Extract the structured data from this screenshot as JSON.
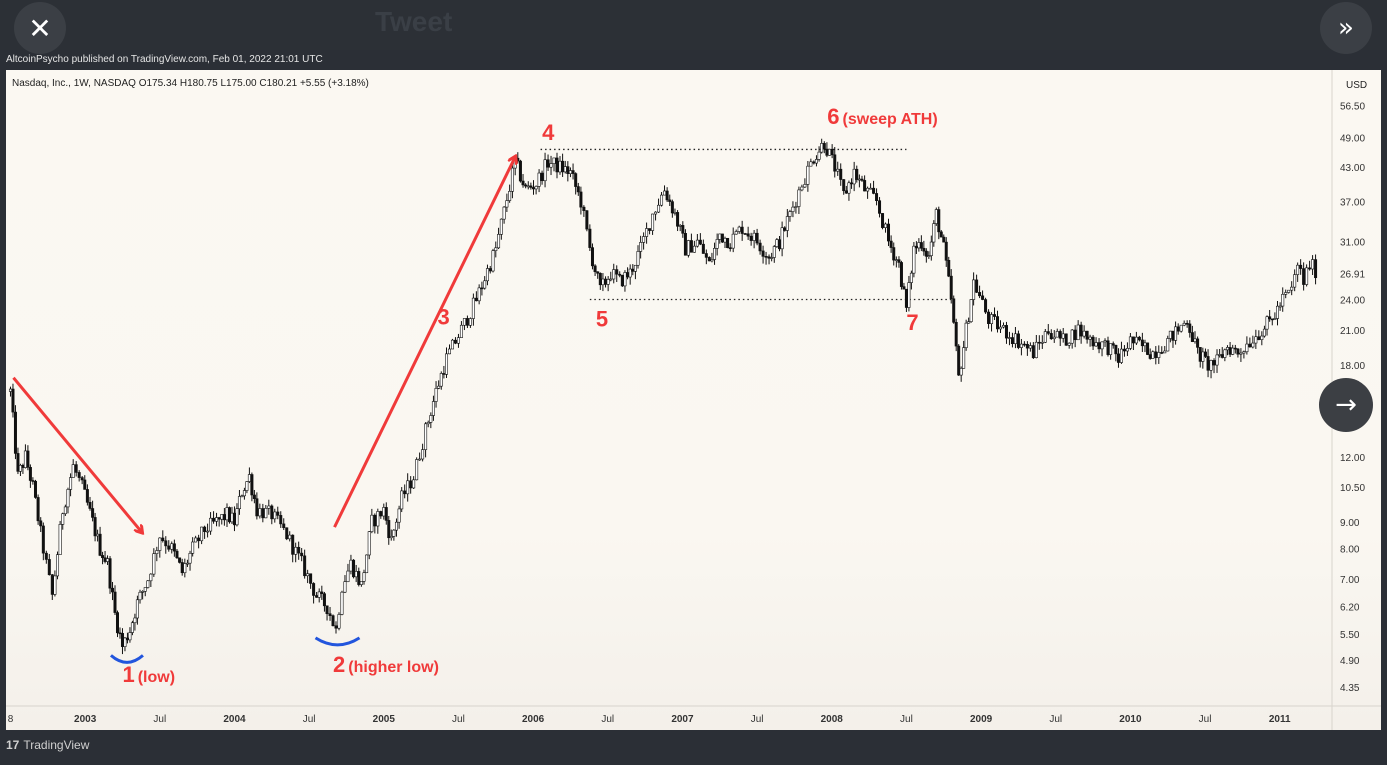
{
  "topbar": {
    "ghost_title": "Tweet"
  },
  "controls": {
    "close_glyph": "✕",
    "expand_glyph": "»",
    "next_glyph": "→"
  },
  "header": {
    "publisher": "AltcoinPsycho published on TradingView.com, Feb 01, 2022 21:01 UTC",
    "symbol_info": "Nasdaq, Inc., 1W, NASDAQ  O175.34  H180.75  L175.00  C180.21  +5.55 (+3.18%)",
    "currency": "USD"
  },
  "footer": {
    "logo_mark": "17",
    "brand": "TradingView"
  },
  "colors": {
    "annotation_red": "#f03a3a",
    "annotation_blue": "#2255dd",
    "candle": "#111111"
  },
  "chart_data": {
    "type": "line",
    "title": "",
    "y_scale": "log",
    "ylim": [
      4.0,
      66.0
    ],
    "y_ticks": [
      "56.50",
      "49.00",
      "43.00",
      "37.00",
      "31.00",
      "26.91",
      "24.00",
      "21.00",
      "18.00",
      "12.00",
      "10.50",
      "9.00",
      "8.00",
      "7.00",
      "6.20",
      "5.50",
      "4.90",
      "4.35"
    ],
    "y_tick_values": [
      56.5,
      49,
      43,
      37,
      31,
      26.91,
      24,
      21,
      18,
      12,
      10.5,
      9,
      8,
      7,
      6.2,
      5.5,
      4.9,
      4.35
    ],
    "x_ticks": [
      "8",
      "2003",
      "Jul",
      "2004",
      "Jul",
      "2005",
      "Jul",
      "2006",
      "Jul",
      "2007",
      "Jul",
      "2008",
      "Jul",
      "2009",
      "Jul",
      "2010",
      "Jul",
      "2011"
    ],
    "x_tick_dates": [
      2002.5,
      2003.0,
      2003.5,
      2004.0,
      2004.5,
      2005.0,
      2005.5,
      2006.0,
      2006.5,
      2007.0,
      2007.5,
      2008.0,
      2008.5,
      2009.0,
      2009.5,
      2010.0,
      2010.5,
      2011.0
    ],
    "xlim": [
      2002.47,
      2011.35
    ],
    "series": [
      {
        "values": [
          [
            2002.5,
            16
          ],
          [
            2002.55,
            11
          ],
          [
            2002.6,
            12
          ],
          [
            2002.65,
            10.5
          ],
          [
            2002.72,
            8
          ],
          [
            2002.78,
            6.5
          ],
          [
            2002.85,
            9.5
          ],
          [
            2002.92,
            11.5
          ],
          [
            2002.98,
            10.5
          ],
          [
            2003.05,
            9
          ],
          [
            2003.1,
            8
          ],
          [
            2003.15,
            7.5
          ],
          [
            2003.2,
            6
          ],
          [
            2003.25,
            5.2
          ],
          [
            2003.3,
            5.6
          ],
          [
            2003.35,
            6.3
          ],
          [
            2003.42,
            7
          ],
          [
            2003.5,
            8.5
          ],
          [
            2003.58,
            8
          ],
          [
            2003.65,
            7.2
          ],
          [
            2003.72,
            8
          ],
          [
            2003.8,
            8.7
          ],
          [
            2003.88,
            9
          ],
          [
            2003.95,
            9.3
          ],
          [
            2004.0,
            9
          ],
          [
            2004.05,
            10.3
          ],
          [
            2004.1,
            11
          ],
          [
            2004.15,
            9.5
          ],
          [
            2004.25,
            9.3
          ],
          [
            2004.35,
            8.5
          ],
          [
            2004.45,
            7.5
          ],
          [
            2004.55,
            6.5
          ],
          [
            2004.62,
            6.2
          ],
          [
            2004.68,
            5.6
          ],
          [
            2004.72,
            6.8
          ],
          [
            2004.78,
            7.5
          ],
          [
            2004.85,
            6.8
          ],
          [
            2004.92,
            9
          ],
          [
            2005.0,
            9.5
          ],
          [
            2005.05,
            8.3
          ],
          [
            2005.12,
            10
          ],
          [
            2005.2,
            11
          ],
          [
            2005.28,
            13.5
          ],
          [
            2005.35,
            16
          ],
          [
            2005.42,
            18.5
          ],
          [
            2005.52,
            21
          ],
          [
            2005.62,
            24
          ],
          [
            2005.75,
            30
          ],
          [
            2005.88,
            44
          ],
          [
            2005.95,
            39
          ],
          [
            2006.02,
            40
          ],
          [
            2006.1,
            44
          ],
          [
            2006.18,
            43
          ],
          [
            2006.25,
            42
          ],
          [
            2006.32,
            37
          ],
          [
            2006.38,
            30
          ],
          [
            2006.45,
            25
          ],
          [
            2006.52,
            27
          ],
          [
            2006.58,
            26
          ],
          [
            2006.65,
            27
          ],
          [
            2006.72,
            30
          ],
          [
            2006.8,
            35
          ],
          [
            2006.88,
            39
          ],
          [
            2006.95,
            35
          ],
          [
            2007.02,
            30
          ],
          [
            2007.1,
            31
          ],
          [
            2007.18,
            28
          ],
          [
            2007.25,
            32
          ],
          [
            2007.32,
            31
          ],
          [
            2007.4,
            33
          ],
          [
            2007.5,
            31
          ],
          [
            2007.58,
            29
          ],
          [
            2007.65,
            31
          ],
          [
            2007.72,
            35
          ],
          [
            2007.8,
            40
          ],
          [
            2007.88,
            45
          ],
          [
            2007.95,
            48
          ],
          [
            2008.02,
            43
          ],
          [
            2008.08,
            38
          ],
          [
            2008.15,
            42
          ],
          [
            2008.22,
            39
          ],
          [
            2008.3,
            37
          ],
          [
            2008.38,
            31
          ],
          [
            2008.45,
            28
          ],
          [
            2008.5,
            23
          ],
          [
            2008.55,
            30
          ],
          [
            2008.6,
            31
          ],
          [
            2008.65,
            29
          ],
          [
            2008.7,
            35
          ],
          [
            2008.75,
            30
          ],
          [
            2008.8,
            24
          ],
          [
            2008.85,
            17
          ],
          [
            2008.9,
            21
          ],
          [
            2008.95,
            26
          ],
          [
            2009.05,
            22
          ],
          [
            2009.15,
            21
          ],
          [
            2009.25,
            20
          ],
          [
            2009.35,
            19
          ],
          [
            2009.45,
            21
          ],
          [
            2009.55,
            20
          ],
          [
            2009.65,
            21
          ],
          [
            2009.75,
            20
          ],
          [
            2009.85,
            19.5
          ],
          [
            2009.92,
            18.5
          ],
          [
            2010.0,
            20
          ],
          [
            2010.08,
            19.5
          ],
          [
            2010.15,
            19
          ],
          [
            2010.25,
            20
          ],
          [
            2010.32,
            21
          ],
          [
            2010.38,
            22
          ],
          [
            2010.45,
            19
          ],
          [
            2010.52,
            18
          ],
          [
            2010.58,
            18.2
          ],
          [
            2010.65,
            19.5
          ],
          [
            2010.72,
            19
          ],
          [
            2010.8,
            20
          ],
          [
            2010.88,
            21
          ],
          [
            2010.95,
            22
          ],
          [
            2011.02,
            24
          ],
          [
            2011.08,
            25
          ],
          [
            2011.12,
            28
          ],
          [
            2011.16,
            26
          ],
          [
            2011.2,
            28
          ],
          [
            2011.26,
            27
          ]
        ]
      }
    ],
    "annotations": [
      {
        "label": "1",
        "note": "(low)"
      },
      {
        "label": "2",
        "note": "(higher low)"
      },
      {
        "label": "3",
        "note": ""
      },
      {
        "label": "4",
        "note": ""
      },
      {
        "label": "5",
        "note": ""
      },
      {
        "label": "6",
        "note": "(sweep ATH)"
      },
      {
        "label": "7",
        "note": ""
      }
    ],
    "levels": [
      {
        "name": "ath-level",
        "value": 46.5,
        "from": 2006.05,
        "to": 2008.5
      },
      {
        "name": "support-level",
        "value": 24.0,
        "from": 2006.38,
        "to": 2008.8
      }
    ],
    "grid": false,
    "legend": "none"
  }
}
